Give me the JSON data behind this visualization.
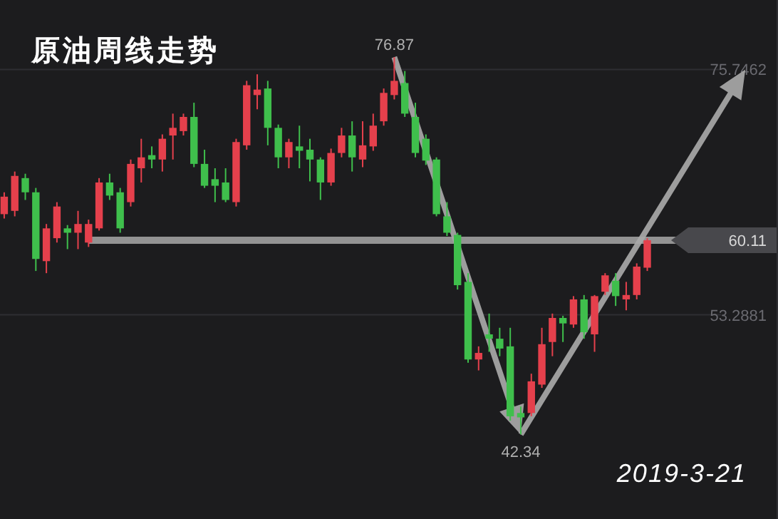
{
  "chart_data": {
    "type": "candlestick",
    "title": "原油周线走势",
    "categories": [
      null,
      null,
      null,
      null,
      null,
      null,
      null,
      null,
      null,
      null,
      null,
      null,
      null,
      null,
      null,
      null,
      null,
      null,
      null,
      null,
      null,
      null,
      null,
      null,
      null,
      null,
      null,
      null,
      null,
      null,
      null,
      null,
      null,
      null,
      null,
      null,
      null,
      null,
      null,
      null,
      null,
      null,
      null,
      null,
      null,
      null,
      null,
      null,
      null,
      null,
      null,
      null,
      null,
      null,
      null,
      null,
      null,
      null,
      null,
      null,
      null,
      null,
      null,
      null,
      null,
      null,
      null,
      null,
      null,
      null,
      null,
      null,
      null,
      null
    ],
    "ohlc": [
      [
        62.5,
        64.5,
        62.1,
        64.1
      ],
      [
        62.8,
        66.4,
        62.3,
        66.0
      ],
      [
        65.8,
        66.2,
        63.8,
        64.5
      ],
      [
        64.5,
        64.9,
        57.3,
        58.4
      ],
      [
        58.2,
        61.6,
        57.1,
        61.2
      ],
      [
        60.3,
        63.6,
        59.9,
        63.2
      ],
      [
        61.2,
        61.5,
        59.3,
        60.8
      ],
      [
        60.8,
        62.8,
        59.3,
        61.6
      ],
      [
        59.9,
        62.0,
        59.5,
        61.6
      ],
      [
        61.2,
        65.8,
        61.0,
        65.4
      ],
      [
        65.4,
        66.2,
        63.8,
        64.2
      ],
      [
        64.5,
        64.9,
        60.8,
        61.2
      ],
      [
        63.6,
        67.5,
        63.2,
        67.1
      ],
      [
        66.7,
        69.4,
        65.4,
        67.7
      ],
      [
        67.9,
        68.7,
        66.7,
        67.5
      ],
      [
        67.5,
        69.8,
        66.4,
        69.4
      ],
      [
        69.7,
        71.7,
        67.5,
        70.4
      ],
      [
        70.1,
        71.7,
        69.7,
        71.4
      ],
      [
        71.4,
        72.7,
        66.8,
        67.1
      ],
      [
        67.1,
        68.4,
        64.9,
        65.1
      ],
      [
        65.7,
        66.7,
        63.6,
        65.1
      ],
      [
        65.4,
        66.7,
        63.6,
        63.8
      ],
      [
        63.6,
        69.4,
        63.2,
        69.1
      ],
      [
        68.8,
        74.7,
        68.4,
        74.3
      ],
      [
        73.4,
        75.3,
        72.1,
        73.9
      ],
      [
        74.0,
        74.7,
        68.8,
        70.4
      ],
      [
        70.4,
        70.7,
        66.7,
        67.7
      ],
      [
        67.7,
        69.4,
        66.7,
        69.1
      ],
      [
        68.7,
        70.6,
        66.7,
        68.3
      ],
      [
        68.4,
        69.4,
        65.5,
        67.5
      ],
      [
        67.5,
        67.7,
        63.8,
        65.4
      ],
      [
        65.4,
        68.5,
        65.1,
        68.1
      ],
      [
        68.1,
        70.4,
        67.7,
        69.7
      ],
      [
        69.7,
        71.0,
        66.4,
        67.7
      ],
      [
        67.5,
        71.0,
        66.8,
        68.8
      ],
      [
        68.7,
        71.7,
        68.3,
        70.6
      ],
      [
        71.0,
        74.0,
        70.6,
        73.6
      ],
      [
        73.4,
        76.87,
        73.0,
        74.7
      ],
      [
        74.5,
        75.6,
        71.4,
        71.7
      ],
      [
        71.4,
        72.7,
        67.7,
        68.1
      ],
      [
        69.4,
        69.8,
        67.0,
        67.4
      ],
      [
        67.5,
        67.7,
        62.3,
        62.5
      ],
      [
        62.3,
        63.6,
        60.5,
        60.8
      ],
      [
        60.6,
        60.8,
        55.6,
        56.0
      ],
      [
        56.3,
        57.1,
        48.9,
        49.2
      ],
      [
        49.2,
        50.4,
        48.2,
        49.8
      ],
      [
        51.5,
        53.4,
        49.9,
        51.1
      ],
      [
        51.1,
        52.1,
        49.5,
        50.2
      ],
      [
        50.4,
        52.1,
        43.6,
        44.0
      ],
      [
        44.3,
        44.9,
        42.34,
        43.9
      ],
      [
        44.3,
        47.9,
        44.0,
        47.2
      ],
      [
        46.9,
        52.1,
        46.6,
        50.6
      ],
      [
        50.8,
        53.4,
        49.5,
        53.0
      ],
      [
        53.0,
        53.2,
        50.8,
        52.5
      ],
      [
        52.4,
        55.0,
        52.1,
        54.7
      ],
      [
        54.7,
        55.1,
        51.1,
        51.7
      ],
      [
        51.5,
        55.1,
        49.9,
        55.0
      ],
      [
        55.4,
        57.1,
        55.1,
        56.9
      ],
      [
        56.4,
        57.1,
        54.1,
        55.0
      ],
      [
        54.7,
        56.3,
        53.7,
        55.1
      ],
      [
        55.1,
        58.0,
        54.7,
        57.7
      ],
      [
        57.6,
        60.3,
        57.3,
        60.11
      ],
      null,
      null,
      null,
      null,
      null,
      null,
      null,
      null,
      null,
      null,
      null,
      null
    ],
    "colors": [
      "#e5404c",
      "#e5404c",
      "#3fbf4c",
      "#3fbf4c",
      "#e5404c",
      "#e5404c",
      "#3fbf4c",
      "#e5404c",
      "#e5404c",
      "#e5404c",
      "#3fbf4c",
      "#3fbf4c",
      "#e5404c",
      "#e5404c",
      "#3fbf4c",
      "#e5404c",
      "#e5404c",
      "#e5404c",
      "#3fbf4c",
      "#3fbf4c",
      "#3fbf4c",
      "#3fbf4c",
      "#e5404c",
      "#e5404c",
      "#e5404c",
      "#3fbf4c",
      "#3fbf4c",
      "#e5404c",
      "#3fbf4c",
      "#3fbf4c",
      "#3fbf4c",
      "#e5404c",
      "#e5404c",
      "#3fbf4c",
      "#e5404c",
      "#e5404c",
      "#e5404c",
      "#e5404c",
      "#3fbf4c",
      "#3fbf4c",
      "#3fbf4c",
      "#3fbf4c",
      "#3fbf4c",
      "#3fbf4c",
      "#3fbf4c",
      "#e5404c",
      "#3fbf4c",
      "#3fbf4c",
      "#3fbf4c",
      "#3fbf4c",
      "#e5404c",
      "#e5404c",
      "#e5404c",
      "#3fbf4c",
      "#e5404c",
      "#3fbf4c",
      "#e5404c",
      "#e5404c",
      "#3fbf4c",
      "#e5404c",
      "#e5404c",
      "#e5404c",
      null,
      null,
      null,
      null,
      null,
      null,
      null,
      null,
      null,
      null,
      null,
      null
    ],
    "ylim": [
      34.6,
      82.1
    ],
    "yticks": [
      75.7462,
      53.2881
    ],
    "grid": "y",
    "ref_lines": [
      {
        "axis": "y",
        "value": 60.11,
        "label": "60.11",
        "color": "#a8a8a8"
      }
    ],
    "annotations": [
      {
        "text": "76.87",
        "y": 76.87
      },
      {
        "text": "42.34",
        "y": 42.34
      },
      "2019-3-21"
    ]
  }
}
